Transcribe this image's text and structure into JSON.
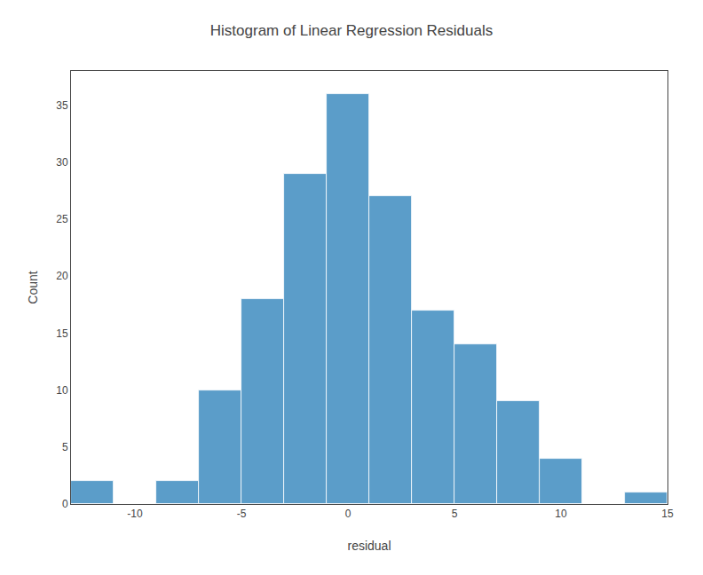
{
  "chart_data": {
    "type": "histogram",
    "title": "Histogram of Linear Regression Residuals",
    "xlabel": "residual",
    "ylabel": "Count",
    "bins": [
      -13,
      -11,
      -9,
      -7,
      -5,
      -3,
      -1,
      1,
      3,
      5,
      7,
      9,
      11,
      13,
      15
    ],
    "counts": [
      2,
      0,
      2,
      10,
      18,
      29,
      36,
      27,
      17,
      14,
      9,
      4,
      0,
      1
    ],
    "color": "#5B9DC9",
    "xlim": [
      -13,
      15
    ],
    "ylim": [
      0,
      38
    ],
    "xticks": [
      -10,
      -5,
      0,
      5,
      10,
      15
    ],
    "yticks": [
      0,
      5,
      10,
      15,
      20,
      25,
      30,
      35
    ],
    "grid": false
  }
}
